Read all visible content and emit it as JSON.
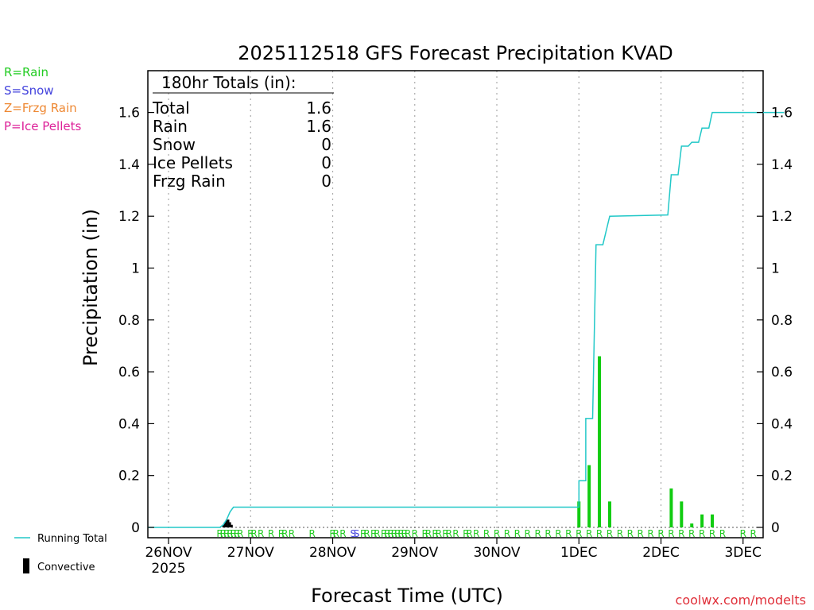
{
  "chart_data": {
    "type": "bar",
    "title": "2025112518 GFS Forecast Precipitation KVAD",
    "xlabel": "Forecast Time (UTC)",
    "ylabel": "Precipitation (in)",
    "ylim": [
      0,
      1.75
    ],
    "xlim_hours": [
      -6,
      180
    ],
    "y_ticks": [
      0,
      0.2,
      0.4,
      0.6,
      0.8,
      1,
      1.2,
      1.4,
      1.6
    ],
    "y_tick_labels": [
      "0",
      "0.2",
      "0.4",
      "0.6",
      "0.8",
      "1",
      "1.2",
      "1.4",
      "1.6"
    ],
    "x_tick_hours": [
      0,
      24,
      48,
      72,
      96,
      120,
      144,
      168
    ],
    "x_tick_labels": [
      "26NOV",
      "27NOV",
      "28NOV",
      "29NOV",
      "30NOV",
      "1DEC",
      "2DEC",
      "3DEC"
    ],
    "x_year_label": "2025",
    "legend": [
      {
        "label": "R=Rain",
        "color": "#22cc22"
      },
      {
        "label": "S=Snow",
        "color": "#4444dd"
      },
      {
        "label": "Z=Frzg Rain",
        "color": "#ee8833"
      },
      {
        "label": "P=Ice Pellets",
        "color": "#dd2299"
      }
    ],
    "bottom_legend": {
      "running_total": "Running Total",
      "convective": "Convective"
    },
    "totals_box": {
      "heading": "180hr Totals (in):",
      "rows": [
        {
          "label": "Total",
          "value": "1.6"
        },
        {
          "label": "Rain",
          "value": "1.6"
        },
        {
          "label": "Snow",
          "value": "0"
        },
        {
          "label": "Ice Pellets",
          "value": "0"
        },
        {
          "label": "Frzg Rain",
          "value": "0"
        }
      ]
    },
    "series": [
      {
        "name": "Rain",
        "color": "#11cc11",
        "points": [
          {
            "hour": 120,
            "value": 0.1
          },
          {
            "hour": 123,
            "value": 0.24
          },
          {
            "hour": 126,
            "value": 0.66
          },
          {
            "hour": 129,
            "value": 0.1
          },
          {
            "hour": 147,
            "value": 0.15
          },
          {
            "hour": 150,
            "value": 0.1
          },
          {
            "hour": 153,
            "value": 0.015
          },
          {
            "hour": 156,
            "value": 0.05
          },
          {
            "hour": 159,
            "value": 0.05
          }
        ]
      },
      {
        "name": "Convective",
        "color": "#000000",
        "points": [
          {
            "hour": 16,
            "value": 0.01
          },
          {
            "hour": 16.5,
            "value": 0.02
          },
          {
            "hour": 17,
            "value": 0.03
          },
          {
            "hour": 17.5,
            "value": 0.03
          },
          {
            "hour": 18,
            "value": 0.02
          },
          {
            "hour": 18.5,
            "value": 0.01
          }
        ]
      },
      {
        "name": "Running Total",
        "color": "#22c8c8",
        "type": "step",
        "points": [
          {
            "hour": -6,
            "value": 0
          },
          {
            "hour": 15,
            "value": 0
          },
          {
            "hour": 16,
            "value": 0.01
          },
          {
            "hour": 17,
            "value": 0.03
          },
          {
            "hour": 18,
            "value": 0.06
          },
          {
            "hour": 19,
            "value": 0.078
          },
          {
            "hour": 120,
            "value": 0.078
          },
          {
            "hour": 120,
            "value": 0.18
          },
          {
            "hour": 122,
            "value": 0.18
          },
          {
            "hour": 122,
            "value": 0.42
          },
          {
            "hour": 124,
            "value": 0.42
          },
          {
            "hour": 125,
            "value": 1.09
          },
          {
            "hour": 127,
            "value": 1.09
          },
          {
            "hour": 129,
            "value": 1.2
          },
          {
            "hour": 146,
            "value": 1.205
          },
          {
            "hour": 147,
            "value": 1.36
          },
          {
            "hour": 149,
            "value": 1.36
          },
          {
            "hour": 150,
            "value": 1.47
          },
          {
            "hour": 152,
            "value": 1.47
          },
          {
            "hour": 153,
            "value": 1.485
          },
          {
            "hour": 155,
            "value": 1.485
          },
          {
            "hour": 156,
            "value": 1.54
          },
          {
            "hour": 158,
            "value": 1.54
          },
          {
            "hour": 159,
            "value": 1.6
          },
          {
            "hour": 180,
            "value": 1.6
          }
        ]
      }
    ],
    "ptype_markers": [
      {
        "hour": 15,
        "type": "R"
      },
      {
        "hour": 16,
        "type": "R"
      },
      {
        "hour": 17,
        "type": "R"
      },
      {
        "hour": 18,
        "type": "R"
      },
      {
        "hour": 19,
        "type": "R"
      },
      {
        "hour": 20,
        "type": "R"
      },
      {
        "hour": 21,
        "type": "R"
      },
      {
        "hour": 24,
        "type": "R"
      },
      {
        "hour": 25,
        "type": "R"
      },
      {
        "hour": 27,
        "type": "R"
      },
      {
        "hour": 30,
        "type": "R"
      },
      {
        "hour": 33,
        "type": "R"
      },
      {
        "hour": 34,
        "type": "R"
      },
      {
        "hour": 36,
        "type": "R"
      },
      {
        "hour": 42,
        "type": "R"
      },
      {
        "hour": 48,
        "type": "R"
      },
      {
        "hour": 49,
        "type": "R"
      },
      {
        "hour": 51,
        "type": "R"
      },
      {
        "hour": 54,
        "type": "S"
      },
      {
        "hour": 55,
        "type": "S"
      },
      {
        "hour": 57,
        "type": "R"
      },
      {
        "hour": 58,
        "type": "R"
      },
      {
        "hour": 60,
        "type": "R"
      },
      {
        "hour": 61,
        "type": "R"
      },
      {
        "hour": 63,
        "type": "R"
      },
      {
        "hour": 64,
        "type": "R"
      },
      {
        "hour": 65,
        "type": "R"
      },
      {
        "hour": 66,
        "type": "R"
      },
      {
        "hour": 67,
        "type": "R"
      },
      {
        "hour": 68,
        "type": "R"
      },
      {
        "hour": 69,
        "type": "R"
      },
      {
        "hour": 70,
        "type": "R"
      },
      {
        "hour": 72,
        "type": "R"
      },
      {
        "hour": 75,
        "type": "R"
      },
      {
        "hour": 76,
        "type": "R"
      },
      {
        "hour": 78,
        "type": "R"
      },
      {
        "hour": 79,
        "type": "R"
      },
      {
        "hour": 81,
        "type": "R"
      },
      {
        "hour": 82,
        "type": "R"
      },
      {
        "hour": 84,
        "type": "R"
      },
      {
        "hour": 87,
        "type": "R"
      },
      {
        "hour": 88,
        "type": "R"
      },
      {
        "hour": 90,
        "type": "R"
      },
      {
        "hour": 93,
        "type": "R"
      },
      {
        "hour": 96,
        "type": "R"
      },
      {
        "hour": 99,
        "type": "R"
      },
      {
        "hour": 102,
        "type": "R"
      },
      {
        "hour": 105,
        "type": "R"
      },
      {
        "hour": 108,
        "type": "R"
      },
      {
        "hour": 111,
        "type": "R"
      },
      {
        "hour": 114,
        "type": "R"
      },
      {
        "hour": 117,
        "type": "R"
      },
      {
        "hour": 120,
        "type": "R"
      },
      {
        "hour": 123,
        "type": "R"
      },
      {
        "hour": 126,
        "type": "R"
      },
      {
        "hour": 129,
        "type": "R"
      },
      {
        "hour": 132,
        "type": "R"
      },
      {
        "hour": 135,
        "type": "R"
      },
      {
        "hour": 138,
        "type": "R"
      },
      {
        "hour": 141,
        "type": "R"
      },
      {
        "hour": 144,
        "type": "R"
      },
      {
        "hour": 147,
        "type": "R"
      },
      {
        "hour": 150,
        "type": "R"
      },
      {
        "hour": 153,
        "type": "R"
      },
      {
        "hour": 156,
        "type": "R"
      },
      {
        "hour": 159,
        "type": "R"
      },
      {
        "hour": 162,
        "type": "R"
      },
      {
        "hour": 168,
        "type": "R"
      },
      {
        "hour": 171,
        "type": "R"
      }
    ],
    "watermark": "coolwx.com/modelts"
  }
}
